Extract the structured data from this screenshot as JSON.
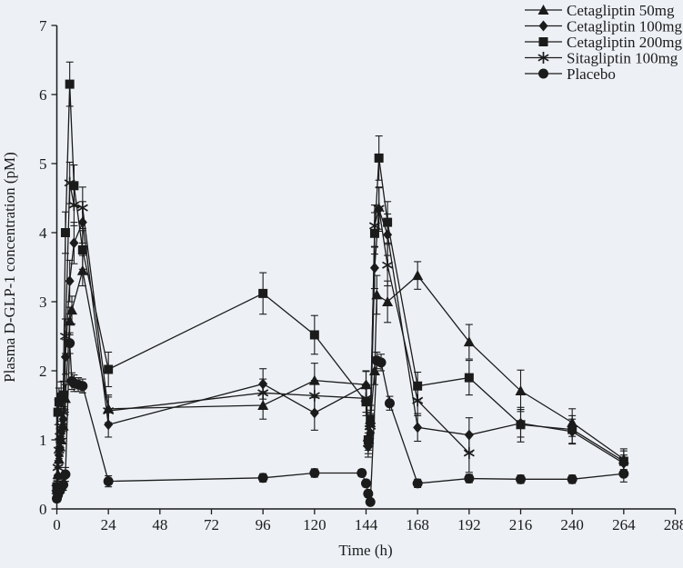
{
  "figure": {
    "background": "#edf1f6",
    "ink": "#1b1b1b"
  },
  "chart_data": {
    "type": "line",
    "title": "",
    "xlabel": "Time (h)",
    "ylabel": "Plasma D-GLP-1 concentration (pM)",
    "xlim": [
      0,
      288
    ],
    "ylim": [
      0,
      7
    ],
    "xticks": [
      0,
      24,
      48,
      72,
      96,
      120,
      144,
      168,
      192,
      216,
      240,
      264,
      288
    ],
    "yticks": [
      0,
      1,
      2,
      3,
      4,
      5,
      6,
      7
    ],
    "grid": false,
    "error_bars": true,
    "legend_position": "top-right",
    "series": [
      {
        "name": "Cetagliptin 50mg",
        "marker": "triangle",
        "x": [
          0,
          0.5,
          1,
          1.5,
          2,
          3,
          4,
          6,
          7,
          12,
          24,
          96,
          120,
          144,
          145,
          146,
          148,
          149,
          154,
          168,
          192,
          216,
          240,
          264
        ],
        "y": [
          0.28,
          0.5,
          0.72,
          0.9,
          1.0,
          1.2,
          1.6,
          2.72,
          2.88,
          3.45,
          1.45,
          1.5,
          1.86,
          1.8,
          1.05,
          1.25,
          2.0,
          3.1,
          3.0,
          3.38,
          2.42,
          1.71,
          1.25,
          0.72
        ],
        "err": [
          0.1,
          0.1,
          0.12,
          0.14,
          0.15,
          0.18,
          0.2,
          0.2,
          0.2,
          0.22,
          0.2,
          0.2,
          0.25,
          0.2,
          0.15,
          0.18,
          0.2,
          0.28,
          0.3,
          0.2,
          0.25,
          0.3,
          0.2,
          0.15
        ]
      },
      {
        "name": "Cetagliptin 100mg",
        "marker": "diamond",
        "x": [
          0,
          0.5,
          1,
          1.5,
          2,
          3,
          4,
          6,
          8,
          12,
          24,
          96,
          120,
          144,
          145,
          146,
          148,
          150,
          154,
          168,
          192,
          216,
          240,
          264
        ],
        "y": [
          0.25,
          0.48,
          0.78,
          1.0,
          1.12,
          1.3,
          2.2,
          3.3,
          3.85,
          4.15,
          1.22,
          1.81,
          1.39,
          1.79,
          0.9,
          1.1,
          3.49,
          4.34,
          3.97,
          1.18,
          1.07,
          1.24,
          1.12,
          0.66
        ],
        "err": [
          0.08,
          0.1,
          0.12,
          0.14,
          0.15,
          0.18,
          0.25,
          0.3,
          0.3,
          0.3,
          0.18,
          0.22,
          0.25,
          0.2,
          0.15,
          0.15,
          0.3,
          0.32,
          0.3,
          0.2,
          0.25,
          0.2,
          0.18,
          0.12
        ]
      },
      {
        "name": "Cetagliptin 200mg",
        "marker": "square",
        "x": [
          0,
          0.5,
          1,
          2,
          3,
          4,
          6,
          8,
          12,
          24,
          96,
          120,
          144,
          145,
          146,
          148,
          150,
          154,
          168,
          192,
          216,
          240,
          264
        ],
        "y": [
          0.32,
          1.4,
          1.55,
          1.62,
          1.65,
          4.0,
          6.15,
          4.68,
          3.75,
          2.02,
          3.12,
          2.52,
          1.55,
          1.0,
          1.3,
          3.99,
          5.08,
          4.15,
          1.78,
          1.9,
          1.22,
          1.15,
          0.69
        ],
        "err": [
          0.1,
          0.18,
          0.2,
          0.22,
          0.2,
          0.3,
          0.32,
          0.3,
          0.28,
          0.25,
          0.3,
          0.28,
          0.2,
          0.15,
          0.2,
          0.3,
          0.32,
          0.3,
          0.2,
          0.25,
          0.25,
          0.2,
          0.15
        ]
      },
      {
        "name": "Sitagliptin 100mg",
        "marker": "star",
        "x": [
          0,
          0.5,
          1,
          1.5,
          2,
          3,
          4,
          6,
          8,
          12,
          24,
          96,
          120,
          144,
          145,
          146,
          148,
          150,
          154,
          168,
          192
        ],
        "y": [
          0.3,
          0.6,
          0.85,
          1.05,
          1.2,
          1.4,
          2.5,
          4.72,
          4.4,
          4.36,
          1.42,
          1.68,
          1.64,
          1.6,
          0.95,
          1.2,
          4.1,
          4.35,
          3.53,
          1.57,
          0.81
        ],
        "err": [
          0.1,
          0.1,
          0.12,
          0.14,
          0.15,
          0.18,
          0.25,
          0.3,
          0.3,
          0.3,
          0.2,
          0.2,
          0.22,
          0.2,
          0.15,
          0.18,
          0.3,
          0.3,
          0.3,
          0.22,
          0.28
        ]
      },
      {
        "name": "Placebo",
        "marker": "circle",
        "x": [
          0,
          0.5,
          1,
          1.5,
          2,
          3,
          4,
          6,
          7,
          8,
          10,
          12,
          24,
          96,
          120,
          142,
          144,
          145,
          146,
          149,
          151,
          155,
          168,
          192,
          216,
          240,
          264
        ],
        "y": [
          0.15,
          0.2,
          0.25,
          0.28,
          0.3,
          0.35,
          0.5,
          2.4,
          1.85,
          1.82,
          1.8,
          1.78,
          0.4,
          0.45,
          0.52,
          0.52,
          0.37,
          0.22,
          0.1,
          2.15,
          2.12,
          1.53,
          0.37,
          0.44,
          0.43,
          0.43,
          0.51
        ],
        "err": [
          0.05,
          0.05,
          0.06,
          0.06,
          0.07,
          0.08,
          0.1,
          0.15,
          0.12,
          0.12,
          0.1,
          0.1,
          0.08,
          0.06,
          0.06,
          0.05,
          0.05,
          0.05,
          0.04,
          0.12,
          0.12,
          0.1,
          0.06,
          0.06,
          0.06,
          0.06,
          0.12
        ]
      }
    ]
  }
}
